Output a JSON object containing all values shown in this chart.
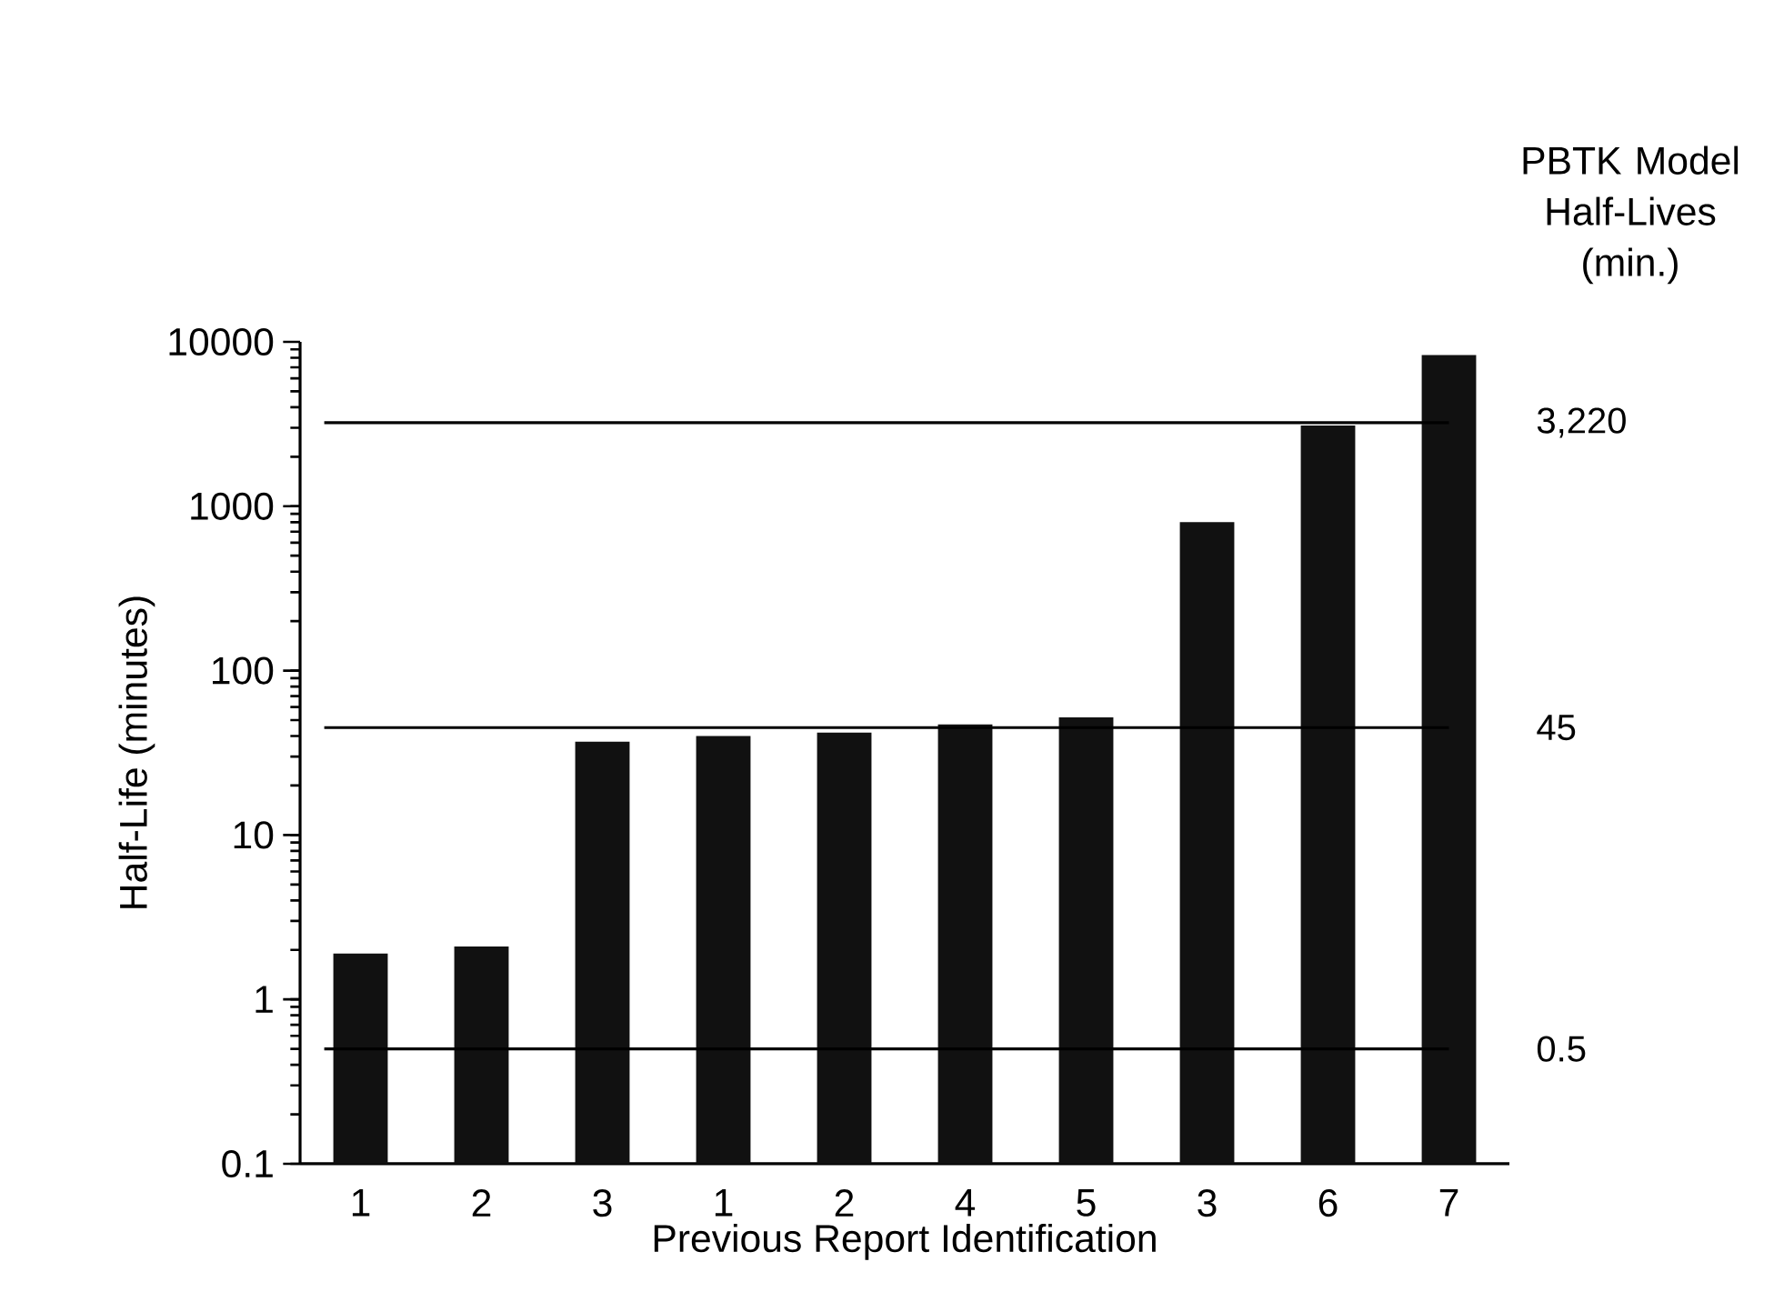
{
  "chart_data": {
    "type": "bar",
    "xlabel": "Previous Report Identification",
    "ylabel": "Half-Life (minutes)",
    "log": "y",
    "categories": [
      "1",
      "2",
      "3",
      "1",
      "2",
      "4",
      "5",
      "3",
      "6",
      "7"
    ],
    "values": [
      1.9,
      2.1,
      37,
      40,
      42,
      47,
      52,
      800,
      3100,
      8300
    ],
    "color": "#111111",
    "ylim": [
      0.1,
      10000
    ],
    "yticks": [
      0.1,
      1,
      10,
      100,
      1000,
      10000
    ],
    "ref_lines": [
      {
        "axis": "y",
        "value": 3220,
        "label": "3,220"
      },
      {
        "axis": "y",
        "value": 45,
        "label": "45"
      },
      {
        "axis": "y",
        "value": 0.5,
        "label": "0.5"
      }
    ],
    "annotations": [
      "PBTK Model Half-Lives (min.)"
    ]
  }
}
